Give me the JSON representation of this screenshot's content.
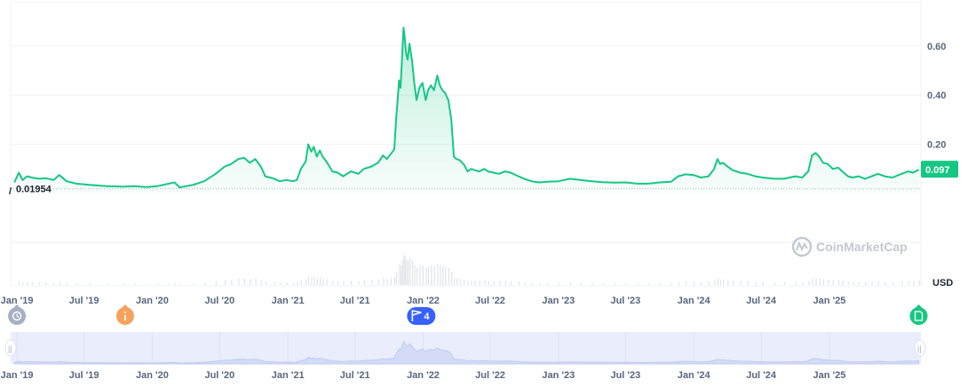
{
  "chart_data": {
    "type": "area",
    "xaxis_type": "date",
    "xlim": [
      "2018-12-15",
      "2025-09-05"
    ],
    "ylim": [
      0,
      0.78
    ],
    "y_ticks": [
      {
        "value": 0.2,
        "label": "0.20"
      },
      {
        "value": 0.4,
        "label": "0.40"
      },
      {
        "value": 0.6,
        "label": "0.60"
      }
    ],
    "x_ticks": [
      {
        "date": "2019-01-01",
        "label": "Jan '19"
      },
      {
        "date": "2019-07-01",
        "label": "Jul '19"
      },
      {
        "date": "2020-01-01",
        "label": "Jan '20"
      },
      {
        "date": "2020-07-01",
        "label": "Jul '20"
      },
      {
        "date": "2021-01-01",
        "label": "Jan '21"
      },
      {
        "date": "2021-07-01",
        "label": "Jul '21"
      },
      {
        "date": "2022-01-01",
        "label": "Jan '22"
      },
      {
        "date": "2022-07-01",
        "label": "Jul '22"
      },
      {
        "date": "2023-01-01",
        "label": "Jan '23"
      },
      {
        "date": "2023-07-01",
        "label": "Jul '23"
      },
      {
        "date": "2024-01-01",
        "label": "Jan '24"
      },
      {
        "date": "2024-07-01",
        "label": "Jul '24"
      },
      {
        "date": "2025-01-01",
        "label": "Jan '25"
      }
    ],
    "currency": "USD",
    "current_price_label": "0.097",
    "min_price_label": "0.01954",
    "min_price_value": 0.01954,
    "watermark": "CoinMarketCap",
    "line_color": "#16c784",
    "grid": true,
    "series": [
      {
        "points": [
          [
            "2018-12-25",
            0.045
          ],
          [
            "2019-01-06",
            0.085
          ],
          [
            "2019-01-16",
            0.055
          ],
          [
            "2019-01-28",
            0.07
          ],
          [
            "2019-02-10",
            0.065
          ],
          [
            "2019-03-01",
            0.06
          ],
          [
            "2019-03-20",
            0.062
          ],
          [
            "2019-04-10",
            0.055
          ],
          [
            "2019-04-25",
            0.075
          ],
          [
            "2019-05-15",
            0.05
          ],
          [
            "2019-06-10",
            0.04
          ],
          [
            "2019-07-15",
            0.035
          ],
          [
            "2019-09-01",
            0.03
          ],
          [
            "2019-10-15",
            0.028
          ],
          [
            "2019-11-15",
            0.03
          ],
          [
            "2019-12-15",
            0.026
          ],
          [
            "2020-01-15",
            0.03
          ],
          [
            "2020-02-15",
            0.04
          ],
          [
            "2020-03-01",
            0.045
          ],
          [
            "2020-03-15",
            0.025
          ],
          [
            "2020-04-20",
            0.035
          ],
          [
            "2020-05-20",
            0.05
          ],
          [
            "2020-06-20",
            0.08
          ],
          [
            "2020-07-15",
            0.11
          ],
          [
            "2020-08-01",
            0.12
          ],
          [
            "2020-08-20",
            0.14
          ],
          [
            "2020-09-05",
            0.145
          ],
          [
            "2020-09-20",
            0.125
          ],
          [
            "2020-10-05",
            0.14
          ],
          [
            "2020-10-20",
            0.11
          ],
          [
            "2020-11-01",
            0.07
          ],
          [
            "2020-11-25",
            0.06
          ],
          [
            "2020-12-10",
            0.05
          ],
          [
            "2020-12-28",
            0.055
          ],
          [
            "2021-01-15",
            0.05
          ],
          [
            "2021-01-25",
            0.055
          ],
          [
            "2021-02-05",
            0.1
          ],
          [
            "2021-02-18",
            0.13
          ],
          [
            "2021-02-25",
            0.2
          ],
          [
            "2021-03-05",
            0.17
          ],
          [
            "2021-03-12",
            0.19
          ],
          [
            "2021-03-20",
            0.15
          ],
          [
            "2021-03-28",
            0.175
          ],
          [
            "2021-04-05",
            0.15
          ],
          [
            "2021-04-15",
            0.13
          ],
          [
            "2021-05-01",
            0.09
          ],
          [
            "2021-05-15",
            0.085
          ],
          [
            "2021-05-30",
            0.07
          ],
          [
            "2021-06-20",
            0.09
          ],
          [
            "2021-07-10",
            0.08
          ],
          [
            "2021-07-25",
            0.1
          ],
          [
            "2021-08-15",
            0.11
          ],
          [
            "2021-09-01",
            0.125
          ],
          [
            "2021-09-15",
            0.155
          ],
          [
            "2021-09-25",
            0.14
          ],
          [
            "2021-10-05",
            0.16
          ],
          [
            "2021-10-15",
            0.18
          ],
          [
            "2021-10-20",
            0.3
          ],
          [
            "2021-10-28",
            0.46
          ],
          [
            "2021-11-01",
            0.43
          ],
          [
            "2021-11-05",
            0.55
          ],
          [
            "2021-11-09",
            0.675
          ],
          [
            "2021-11-12",
            0.64
          ],
          [
            "2021-11-16",
            0.57
          ],
          [
            "2021-11-20",
            0.545
          ],
          [
            "2021-11-25",
            0.61
          ],
          [
            "2021-12-02",
            0.54
          ],
          [
            "2021-12-08",
            0.45
          ],
          [
            "2021-12-14",
            0.38
          ],
          [
            "2021-12-22",
            0.43
          ],
          [
            "2021-12-30",
            0.45
          ],
          [
            "2022-01-08",
            0.38
          ],
          [
            "2022-01-14",
            0.42
          ],
          [
            "2022-01-22",
            0.44
          ],
          [
            "2022-01-30",
            0.42
          ],
          [
            "2022-02-08",
            0.48
          ],
          [
            "2022-02-15",
            0.44
          ],
          [
            "2022-02-22",
            0.42
          ],
          [
            "2022-03-01",
            0.41
          ],
          [
            "2022-03-10",
            0.38
          ],
          [
            "2022-03-18",
            0.3
          ],
          [
            "2022-03-25",
            0.15
          ],
          [
            "2022-04-01",
            0.14
          ],
          [
            "2022-04-10",
            0.135
          ],
          [
            "2022-04-20",
            0.12
          ],
          [
            "2022-05-01",
            0.09
          ],
          [
            "2022-05-10",
            0.1
          ],
          [
            "2022-05-20",
            0.095
          ],
          [
            "2022-06-01",
            0.09
          ],
          [
            "2022-06-15",
            0.1
          ],
          [
            "2022-06-25",
            0.09
          ],
          [
            "2022-07-10",
            0.085
          ],
          [
            "2022-07-25",
            0.08
          ],
          [
            "2022-08-10",
            0.09
          ],
          [
            "2022-08-25",
            0.085
          ],
          [
            "2022-09-15",
            0.07
          ],
          [
            "2022-10-01",
            0.06
          ],
          [
            "2022-10-20",
            0.05
          ],
          [
            "2022-11-10",
            0.045
          ],
          [
            "2022-12-01",
            0.048
          ],
          [
            "2023-01-01",
            0.05
          ],
          [
            "2023-02-01",
            0.06
          ],
          [
            "2023-03-01",
            0.055
          ],
          [
            "2023-04-01",
            0.05
          ],
          [
            "2023-05-01",
            0.046
          ],
          [
            "2023-06-01",
            0.044
          ],
          [
            "2023-07-01",
            0.045
          ],
          [
            "2023-08-01",
            0.04
          ],
          [
            "2023-09-01",
            0.04
          ],
          [
            "2023-10-01",
            0.045
          ],
          [
            "2023-11-01",
            0.048
          ],
          [
            "2023-11-20",
            0.07
          ],
          [
            "2023-12-10",
            0.078
          ],
          [
            "2024-01-01",
            0.075
          ],
          [
            "2024-01-20",
            0.065
          ],
          [
            "2024-02-10",
            0.07
          ],
          [
            "2024-02-25",
            0.1
          ],
          [
            "2024-03-05",
            0.14
          ],
          [
            "2024-03-12",
            0.12
          ],
          [
            "2024-03-20",
            0.125
          ],
          [
            "2024-04-01",
            0.11
          ],
          [
            "2024-04-15",
            0.095
          ],
          [
            "2024-05-05",
            0.085
          ],
          [
            "2024-05-25",
            0.08
          ],
          [
            "2024-06-15",
            0.07
          ],
          [
            "2024-07-05",
            0.065
          ],
          [
            "2024-08-05",
            0.06
          ],
          [
            "2024-09-01",
            0.06
          ],
          [
            "2024-10-01",
            0.07
          ],
          [
            "2024-10-20",
            0.065
          ],
          [
            "2024-11-05",
            0.09
          ],
          [
            "2024-11-15",
            0.155
          ],
          [
            "2024-11-25",
            0.165
          ],
          [
            "2024-12-05",
            0.15
          ],
          [
            "2024-12-15",
            0.125
          ],
          [
            "2024-12-28",
            0.12
          ],
          [
            "2025-01-10",
            0.1
          ],
          [
            "2025-01-25",
            0.105
          ],
          [
            "2025-02-05",
            0.09
          ],
          [
            "2025-02-20",
            0.07
          ],
          [
            "2025-03-05",
            0.065
          ],
          [
            "2025-03-20",
            0.07
          ],
          [
            "2025-04-07",
            0.06
          ],
          [
            "2025-04-25",
            0.07
          ],
          [
            "2025-05-12",
            0.08
          ],
          [
            "2025-05-30",
            0.07
          ],
          [
            "2025-06-20",
            0.065
          ],
          [
            "2025-07-15",
            0.08
          ],
          [
            "2025-08-01",
            0.09
          ],
          [
            "2025-08-15",
            0.085
          ],
          [
            "2025-08-30",
            0.097
          ]
        ]
      }
    ],
    "events": [
      {
        "name": "history",
        "date": "2019-01-01",
        "color": "#a6b0c3"
      },
      {
        "name": "info",
        "date": "2019-10-20",
        "color": "#f5a25d"
      },
      {
        "name": "flags",
        "date": "2021-12-22",
        "color": "#3861fb",
        "label": "4"
      },
      {
        "name": "document",
        "date": "2025-08-30",
        "color": "#16c784"
      }
    ]
  }
}
